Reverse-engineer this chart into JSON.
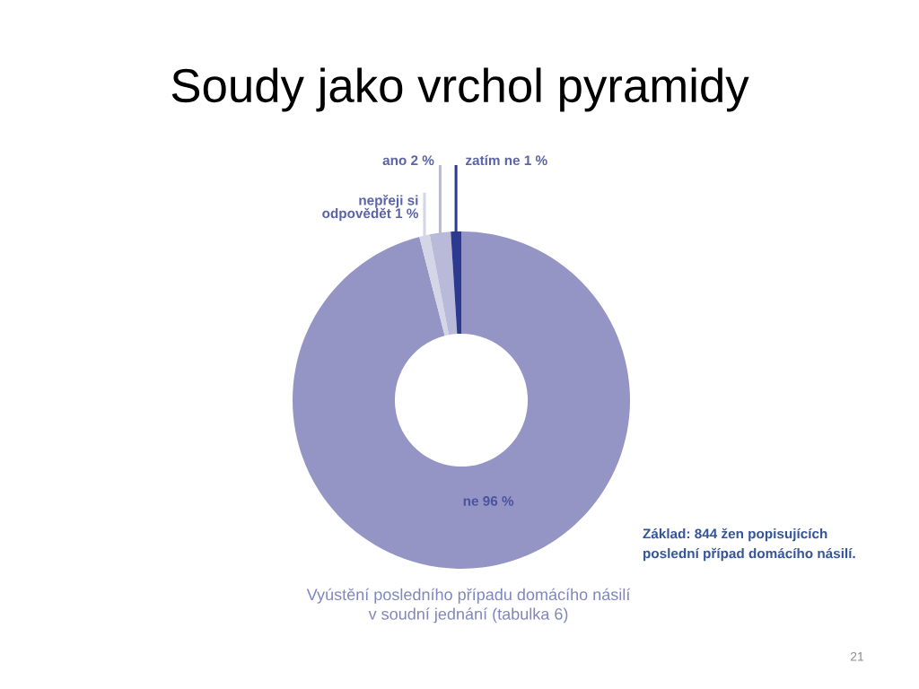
{
  "chart_data": {
    "type": "donut",
    "title": "Soudy jako vrchol pyramidy",
    "categories": [
      "ne",
      "nepřeji si\nodpovědět",
      "ano",
      "zatím ne"
    ],
    "values": [
      96,
      1,
      2,
      1
    ],
    "colors": [
      "#9595c5",
      "#d5d5e8",
      "#b9b9d9",
      "#2b3990"
    ],
    "value_labels": [
      "96 %",
      "1 %",
      "2 %",
      "1 %"
    ],
    "annotations": [
      "Vyústění posledního případu domácího násilí\nv soudní jednání (tabulka 6)",
      "Základ: 844 žen popisujících\nposlední případ domácího násilí.",
      "21"
    ]
  }
}
